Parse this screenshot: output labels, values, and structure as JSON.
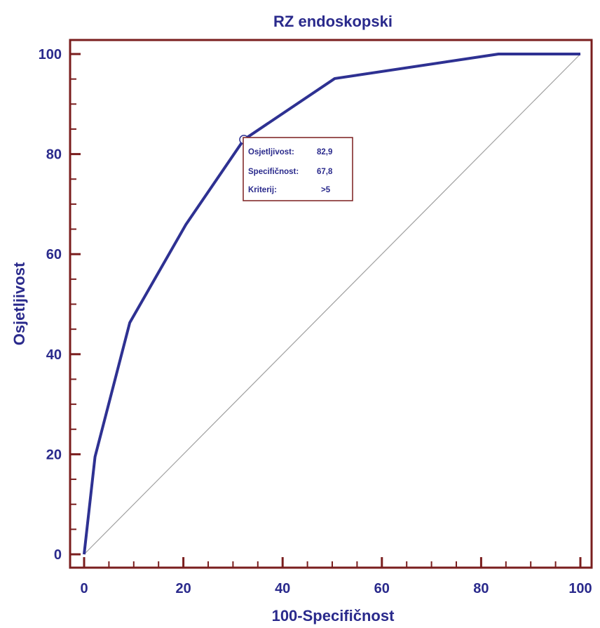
{
  "chart_data": {
    "type": "line",
    "title": "RZ endoskopski",
    "xlabel": "100-Specifičnost",
    "ylabel": "Osjetljivost",
    "xlim": [
      0,
      100
    ],
    "ylim": [
      0,
      100
    ],
    "xticks": [
      "0",
      "20",
      "40",
      "60",
      "80",
      "100"
    ],
    "yticks": [
      "0",
      "20",
      "40",
      "60",
      "80",
      "100"
    ],
    "grid": false,
    "colors": {
      "roc": "#2e3192",
      "diagonal": "#a0a0a0",
      "frame": "#7a1e1e",
      "text": "#2a2a8c"
    },
    "series": [
      {
        "x": [
          0,
          2.2,
          9.2,
          20.5,
          32.2,
          50.5,
          83.5,
          100
        ],
        "y": [
          0,
          19.5,
          46.3,
          65.9,
          82.9,
          95.1,
          100,
          100
        ]
      }
    ],
    "reference_line": {
      "x": [
        0,
        100
      ],
      "y": [
        0,
        100
      ]
    },
    "annotation": {
      "point": {
        "x": 32.2,
        "y": 82.9
      },
      "rows": [
        {
          "label": "Osjetljivost:",
          "value": "82,9"
        },
        {
          "label": "Specifičnost:",
          "value": "67,8"
        },
        {
          "label": "Kriterij:",
          "value": ">5"
        }
      ]
    }
  }
}
